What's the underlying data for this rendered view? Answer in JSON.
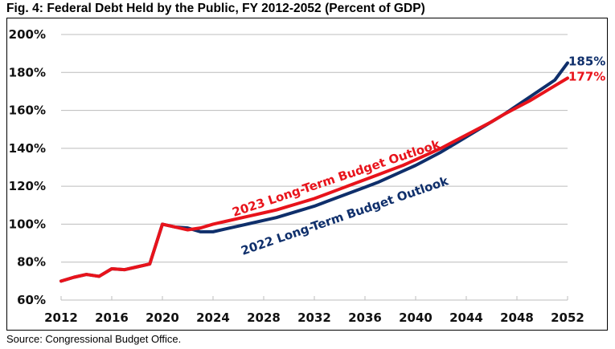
{
  "chart_data": {
    "type": "line",
    "title": "Fig. 4: Federal Debt Held by the Public, FY 2012-2052 (Percent of GDP)",
    "source": "Source: Congressional Budget Office.",
    "xlabel": "",
    "ylabel": "",
    "xlim": [
      2012,
      2052
    ],
    "ylim": [
      60,
      200
    ],
    "grid": true,
    "x_ticks": [
      2012,
      2016,
      2020,
      2024,
      2028,
      2032,
      2036,
      2040,
      2044,
      2048,
      2052
    ],
    "x_tick_labels": [
      "2012",
      "2016",
      "2020",
      "2024",
      "2028",
      "2032",
      "2036",
      "2040",
      "2044",
      "2048",
      "2052"
    ],
    "y_ticks": [
      60,
      80,
      100,
      120,
      140,
      160,
      180,
      200
    ],
    "y_tick_labels": [
      "60%",
      "80%",
      "100%",
      "120%",
      "140%",
      "160%",
      "180%",
      "200%"
    ],
    "legend": "inline labels along lines",
    "series": [
      {
        "name": "2022 Long-Term Budget Outlook",
        "color": "#0f2f6b",
        "end_label": "185%",
        "x": [
          2012,
          2013,
          2014,
          2015,
          2016,
          2017,
          2018,
          2019,
          2020,
          2021,
          2022,
          2023,
          2024,
          2025,
          2026,
          2027,
          2028,
          2029,
          2030,
          2031,
          2032,
          2033,
          2034,
          2035,
          2036,
          2037,
          2038,
          2039,
          2040,
          2041,
          2042,
          2043,
          2044,
          2045,
          2046,
          2047,
          2048,
          2049,
          2050,
          2051,
          2052
        ],
        "values": [
          70,
          72,
          73.5,
          72.5,
          76.5,
          76,
          77.5,
          79,
          100,
          98.5,
          98,
          96,
          96,
          97.5,
          99,
          100.5,
          102,
          103.5,
          105.5,
          107.5,
          109.5,
          112,
          114.5,
          117,
          119.5,
          122,
          125,
          128,
          131,
          134.5,
          138,
          142,
          146,
          150,
          154,
          158,
          162.5,
          167,
          171.5,
          176,
          185
        ]
      },
      {
        "name": "2023 Long-Term Budget Outlook",
        "color": "#e8131b",
        "end_label": "177%",
        "x": [
          2012,
          2013,
          2014,
          2015,
          2016,
          2017,
          2018,
          2019,
          2020,
          2021,
          2022,
          2023,
          2024,
          2025,
          2026,
          2027,
          2028,
          2029,
          2030,
          2031,
          2032,
          2033,
          2034,
          2035,
          2036,
          2037,
          2038,
          2039,
          2040,
          2041,
          2042,
          2043,
          2044,
          2045,
          2046,
          2047,
          2048,
          2049,
          2050,
          2051,
          2052
        ],
        "values": [
          70,
          72,
          73.5,
          72.5,
          76.5,
          76,
          77.5,
          79,
          100,
          98.5,
          97,
          98,
          100,
          101.5,
          103,
          104.5,
          106,
          107.5,
          109.5,
          111.5,
          113.5,
          116,
          118.5,
          121,
          123.5,
          126,
          128.5,
          131,
          134,
          137,
          140,
          143.5,
          147,
          150.5,
          154,
          158,
          161.5,
          165,
          169,
          173,
          177
        ]
      }
    ]
  }
}
